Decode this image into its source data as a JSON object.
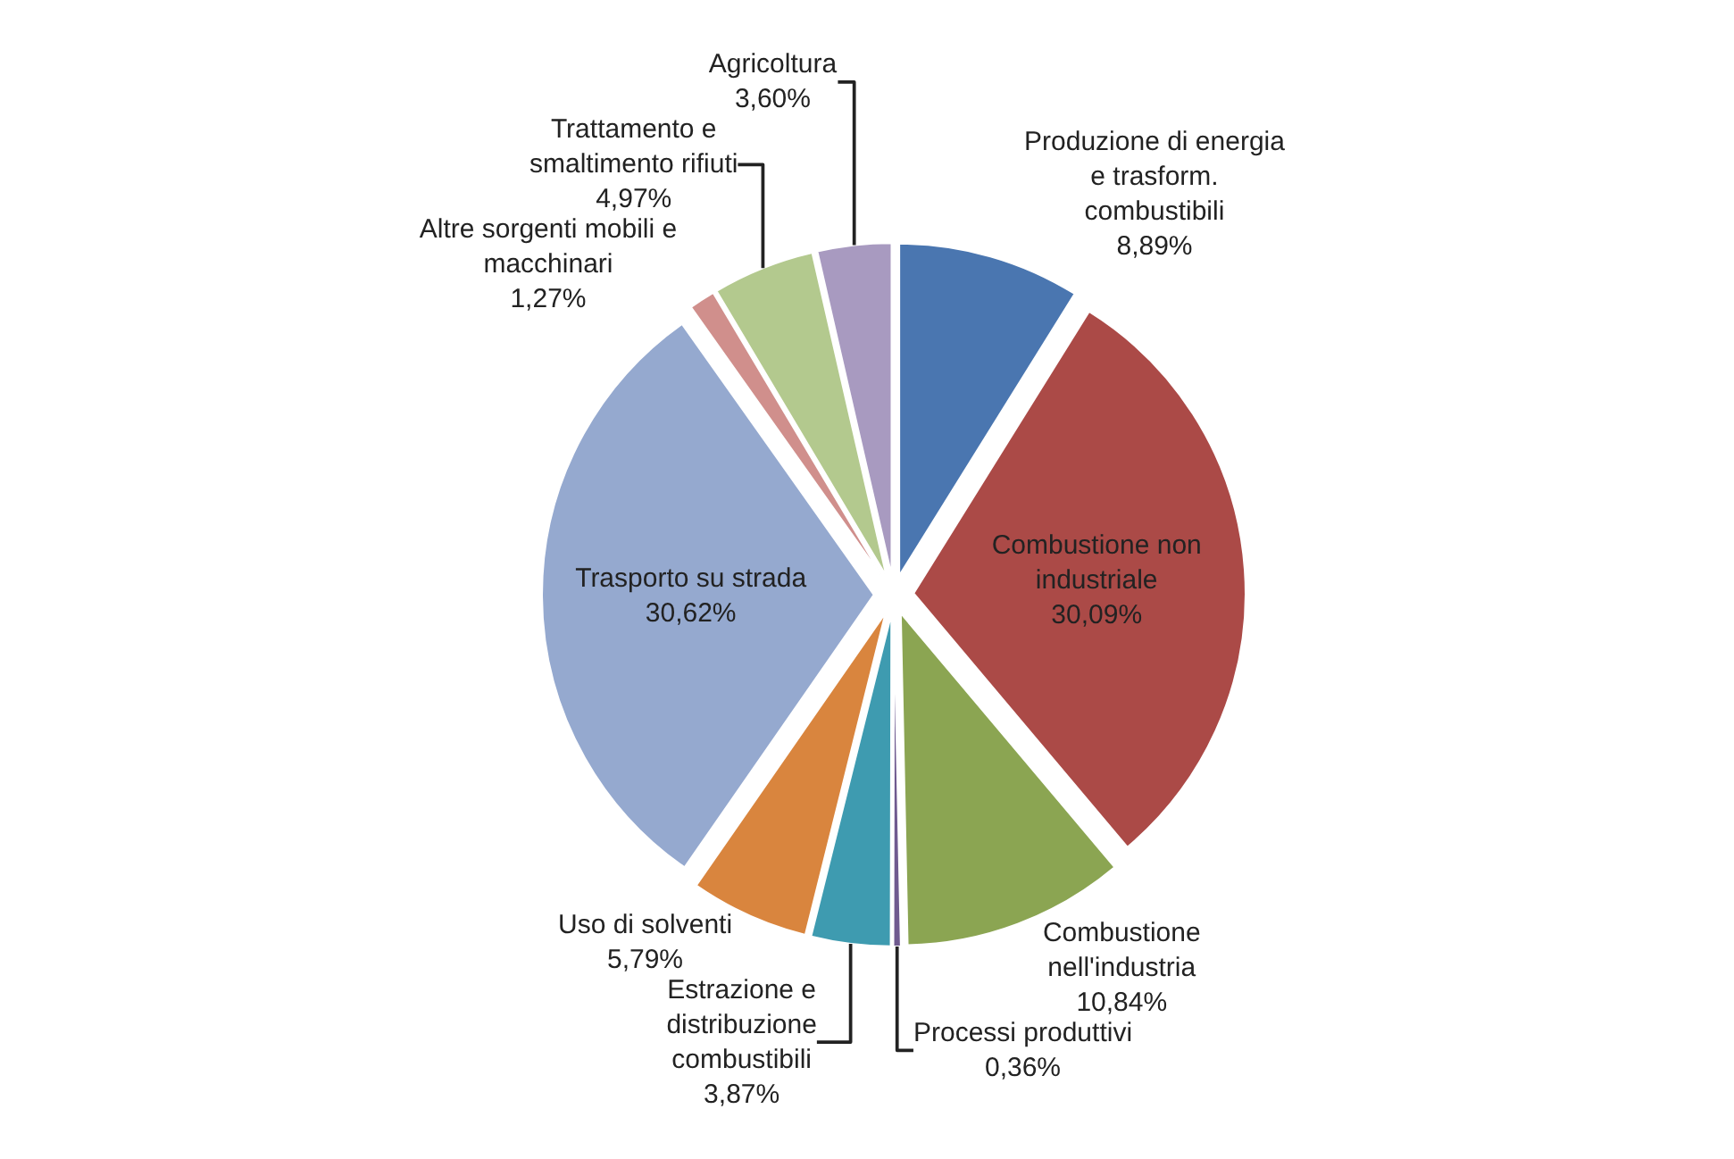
{
  "chart_data": {
    "type": "pie",
    "categories": [
      "Produzione di energia\ne trasform.\ncombustibili",
      "Combustione non\nindustriale",
      "Combustione\nnell'industria",
      "Processi produttivi",
      "Estrazione e\ndistribuzione\ncombustibili",
      "Uso di solventi",
      "Trasporto su strada",
      "Altre sorgenti mobili e\nmacchinari",
      "Trattamento e\nsmaltimento rifiuti",
      "Agricoltura"
    ],
    "values": [
      8.89,
      30.09,
      10.84,
      0.36,
      3.87,
      5.79,
      30.62,
      1.27,
      4.97,
      3.6
    ],
    "value_labels": [
      "8,89%",
      "30,09%",
      "10,84%",
      "0,36%",
      "3,87%",
      "5,79%",
      "30,62%",
      "1,27%",
      "4,97%",
      "3,60%"
    ],
    "colors": [
      "#4a76b0",
      "#ab4a47",
      "#8ba552",
      "#6f5a8f",
      "#3e9bb0",
      "#d9853e",
      "#95a9cf",
      "#d08f8c",
      "#b3c98e",
      "#a89ac0"
    ],
    "legend": false
  }
}
